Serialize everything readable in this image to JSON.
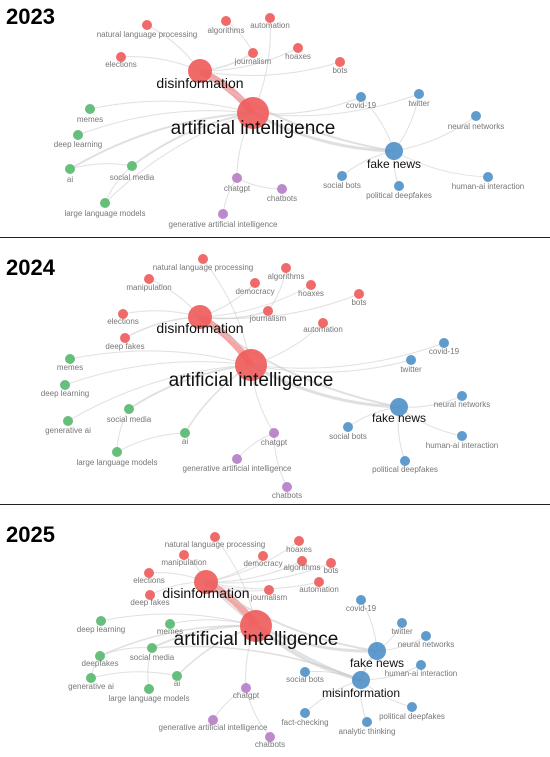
{
  "colors": {
    "red": "#ef5a5a",
    "green": "#56b870",
    "blue": "#4f90c8",
    "purple": "#b57cc6",
    "edge": "#cccccc",
    "label_small": "#777777",
    "label_big": "#111111"
  },
  "panels": [
    {
      "year": "2023",
      "nodes": [
        {
          "id": "ai_main",
          "label": "artificial intelligence",
          "cluster": "red",
          "size": "xl"
        },
        {
          "id": "disinfo",
          "label": "disinformation",
          "cluster": "red",
          "size": "l"
        },
        {
          "id": "nlp",
          "label": "natural language processing",
          "cluster": "red",
          "size": "s"
        },
        {
          "id": "algorithms",
          "label": "algorithms",
          "cluster": "red",
          "size": "s"
        },
        {
          "id": "automation",
          "label": "automation",
          "cluster": "red",
          "size": "s"
        },
        {
          "id": "elections",
          "label": "elections",
          "cluster": "red",
          "size": "s"
        },
        {
          "id": "journalism",
          "label": "journalism",
          "cluster": "red",
          "size": "s"
        },
        {
          "id": "hoaxes",
          "label": "hoaxes",
          "cluster": "red",
          "size": "s"
        },
        {
          "id": "bots",
          "label": "bots",
          "cluster": "red",
          "size": "s"
        },
        {
          "id": "fakenews",
          "label": "fake news",
          "cluster": "blue",
          "size": "m"
        },
        {
          "id": "covid",
          "label": "covid-19",
          "cluster": "blue",
          "size": "s"
        },
        {
          "id": "twitter",
          "label": "twitter",
          "cluster": "blue",
          "size": "s"
        },
        {
          "id": "nn",
          "label": "neural networks",
          "cluster": "blue",
          "size": "s"
        },
        {
          "id": "socialbots",
          "label": "social bots",
          "cluster": "blue",
          "size": "s"
        },
        {
          "id": "poldeep",
          "label": "political deepfakes",
          "cluster": "blue",
          "size": "s"
        },
        {
          "id": "haii",
          "label": "human-ai interaction",
          "cluster": "blue",
          "size": "s"
        },
        {
          "id": "memes",
          "label": "memes",
          "cluster": "green",
          "size": "s"
        },
        {
          "id": "dl",
          "label": "deep learning",
          "cluster": "green",
          "size": "s"
        },
        {
          "id": "ai",
          "label": "ai",
          "cluster": "green",
          "size": "s"
        },
        {
          "id": "socialmedia",
          "label": "social media",
          "cluster": "green",
          "size": "s"
        },
        {
          "id": "llm",
          "label": "large language models",
          "cluster": "green",
          "size": "s"
        },
        {
          "id": "chatgpt",
          "label": "chatgpt",
          "cluster": "purple",
          "size": "s"
        },
        {
          "id": "chatbots",
          "label": "chatbots",
          "cluster": "purple",
          "size": "s"
        },
        {
          "id": "genai",
          "label": "generative artificial intelligence",
          "cluster": "purple",
          "size": "s"
        }
      ]
    },
    {
      "year": "2024",
      "nodes": [
        {
          "id": "ai_main",
          "label": "artificial intelligence",
          "cluster": "red",
          "size": "xl"
        },
        {
          "id": "disinfo",
          "label": "disinformation",
          "cluster": "red",
          "size": "l"
        },
        {
          "id": "nlp",
          "label": "natural language processing",
          "cluster": "red",
          "size": "s"
        },
        {
          "id": "algorithms",
          "label": "algorithms",
          "cluster": "red",
          "size": "s"
        },
        {
          "id": "manipulation",
          "label": "manipulation",
          "cluster": "red",
          "size": "s"
        },
        {
          "id": "democracy",
          "label": "democracy",
          "cluster": "red",
          "size": "s"
        },
        {
          "id": "hoaxes",
          "label": "hoaxes",
          "cluster": "red",
          "size": "s"
        },
        {
          "id": "bots",
          "label": "bots",
          "cluster": "red",
          "size": "s"
        },
        {
          "id": "elections",
          "label": "elections",
          "cluster": "red",
          "size": "s"
        },
        {
          "id": "journalism",
          "label": "journalism",
          "cluster": "red",
          "size": "s"
        },
        {
          "id": "automation",
          "label": "automation",
          "cluster": "red",
          "size": "s"
        },
        {
          "id": "deepfakes",
          "label": "deep fakes",
          "cluster": "red",
          "size": "s"
        },
        {
          "id": "fakenews",
          "label": "fake news",
          "cluster": "blue",
          "size": "m"
        },
        {
          "id": "covid",
          "label": "covid-19",
          "cluster": "blue",
          "size": "s"
        },
        {
          "id": "twitter",
          "label": "twitter",
          "cluster": "blue",
          "size": "s"
        },
        {
          "id": "nn",
          "label": "neural networks",
          "cluster": "blue",
          "size": "s"
        },
        {
          "id": "socialbots",
          "label": "social bots",
          "cluster": "blue",
          "size": "s"
        },
        {
          "id": "haii",
          "label": "human-ai interaction",
          "cluster": "blue",
          "size": "s"
        },
        {
          "id": "poldeep",
          "label": "political deepfakes",
          "cluster": "blue",
          "size": "s"
        },
        {
          "id": "memes",
          "label": "memes",
          "cluster": "green",
          "size": "s"
        },
        {
          "id": "dl",
          "label": "deep learning",
          "cluster": "green",
          "size": "s"
        },
        {
          "id": "genaig",
          "label": "generative ai",
          "cluster": "green",
          "size": "s"
        },
        {
          "id": "socialmedia",
          "label": "social media",
          "cluster": "green",
          "size": "s"
        },
        {
          "id": "ai",
          "label": "ai",
          "cluster": "green",
          "size": "s"
        },
        {
          "id": "llm",
          "label": "large language models",
          "cluster": "green",
          "size": "s"
        },
        {
          "id": "chatgpt",
          "label": "chatgpt",
          "cluster": "purple",
          "size": "s"
        },
        {
          "id": "genai",
          "label": "generative artificial intelligence",
          "cluster": "purple",
          "size": "s"
        },
        {
          "id": "chatbots",
          "label": "chatbots",
          "cluster": "purple",
          "size": "s"
        }
      ]
    },
    {
      "year": "2025",
      "nodes": [
        {
          "id": "ai_main",
          "label": "artificial intelligence",
          "cluster": "red",
          "size": "xl"
        },
        {
          "id": "disinfo",
          "label": "disinformation",
          "cluster": "red",
          "size": "l"
        },
        {
          "id": "nlp",
          "label": "natural language processing",
          "cluster": "red",
          "size": "s"
        },
        {
          "id": "hoaxes",
          "label": "hoaxes",
          "cluster": "red",
          "size": "s"
        },
        {
          "id": "manipulation",
          "label": "manipulation",
          "cluster": "red",
          "size": "s"
        },
        {
          "id": "democracy",
          "label": "democracy",
          "cluster": "red",
          "size": "s"
        },
        {
          "id": "algorithms",
          "label": "algorithms",
          "cluster": "red",
          "size": "s"
        },
        {
          "id": "bots",
          "label": "bots",
          "cluster": "red",
          "size": "s"
        },
        {
          "id": "elections",
          "label": "elections",
          "cluster": "red",
          "size": "s"
        },
        {
          "id": "automation",
          "label": "automation",
          "cluster": "red",
          "size": "s"
        },
        {
          "id": "deepfakes_r",
          "label": "deep fakes",
          "cluster": "red",
          "size": "s"
        },
        {
          "id": "journalism",
          "label": "journalism",
          "cluster": "red",
          "size": "s"
        },
        {
          "id": "fakenews",
          "label": "fake news",
          "cluster": "blue",
          "size": "m"
        },
        {
          "id": "misinfo",
          "label": "misinformation",
          "cluster": "blue",
          "size": "m"
        },
        {
          "id": "covid",
          "label": "covid-19",
          "cluster": "blue",
          "size": "s"
        },
        {
          "id": "twitter",
          "label": "twitter",
          "cluster": "blue",
          "size": "s"
        },
        {
          "id": "nn",
          "label": "neural networks",
          "cluster": "blue",
          "size": "s"
        },
        {
          "id": "haii",
          "label": "human-ai interaction",
          "cluster": "blue",
          "size": "s"
        },
        {
          "id": "socialbots",
          "label": "social bots",
          "cluster": "blue",
          "size": "s"
        },
        {
          "id": "factcheck",
          "label": "fact-checking",
          "cluster": "blue",
          "size": "s"
        },
        {
          "id": "poldeep",
          "label": "political deepfakes",
          "cluster": "blue",
          "size": "s"
        },
        {
          "id": "analytic",
          "label": "analytic thinking",
          "cluster": "blue",
          "size": "s"
        },
        {
          "id": "dl",
          "label": "deep learning",
          "cluster": "green",
          "size": "s"
        },
        {
          "id": "memes",
          "label": "memes",
          "cluster": "green",
          "size": "s"
        },
        {
          "id": "socialmedia",
          "label": "social media",
          "cluster": "green",
          "size": "s"
        },
        {
          "id": "deepfakes_g",
          "label": "deepfakes",
          "cluster": "green",
          "size": "s"
        },
        {
          "id": "ai",
          "label": "ai",
          "cluster": "green",
          "size": "s"
        },
        {
          "id": "genaig",
          "label": "generative ai",
          "cluster": "green",
          "size": "s"
        },
        {
          "id": "llm",
          "label": "large language models",
          "cluster": "green",
          "size": "s"
        },
        {
          "id": "chatgpt",
          "label": "chatgpt",
          "cluster": "purple",
          "size": "s"
        },
        {
          "id": "genai",
          "label": "generative artificial intelligence",
          "cluster": "purple",
          "size": "s"
        },
        {
          "id": "chatbots",
          "label": "chatbots",
          "cluster": "purple",
          "size": "s"
        }
      ]
    }
  ]
}
